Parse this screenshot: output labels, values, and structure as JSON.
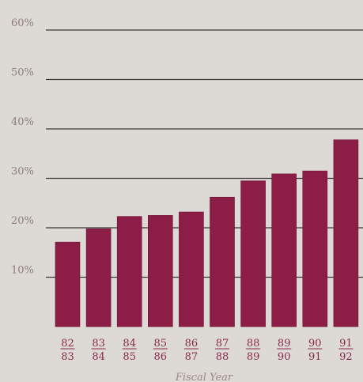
{
  "chart_data": {
    "type": "bar",
    "categories": [
      {
        "top": "82",
        "bottom": "83"
      },
      {
        "top": "83",
        "bottom": "84"
      },
      {
        "top": "84",
        "bottom": "85"
      },
      {
        "top": "85",
        "bottom": "86"
      },
      {
        "top": "86",
        "bottom": "87"
      },
      {
        "top": "87",
        "bottom": "88"
      },
      {
        "top": "88",
        "bottom": "89"
      },
      {
        "top": "89",
        "bottom": "90"
      },
      {
        "top": "90",
        "bottom": "91"
      },
      {
        "top": "91",
        "bottom": "92"
      }
    ],
    "values": [
      17.1,
      19.8,
      22.3,
      22.5,
      23.2,
      26.2,
      29.5,
      30.9,
      31.5,
      37.8
    ],
    "yticks": [
      "10%",
      "20%",
      "30%",
      "40%",
      "50%",
      "60%"
    ],
    "ytick_values": [
      10,
      20,
      30,
      40,
      50,
      60
    ],
    "ylim": [
      0,
      60
    ],
    "xlabel": "Fiscal Year",
    "ylabel": "",
    "title": "",
    "grid": true,
    "colors": {
      "bar": "#8c1d47",
      "bar_edge": "#6f1335",
      "grid": "#3a3a3a",
      "category_text": "#8a2a4c",
      "tick_text": "#8e7c82"
    }
  }
}
